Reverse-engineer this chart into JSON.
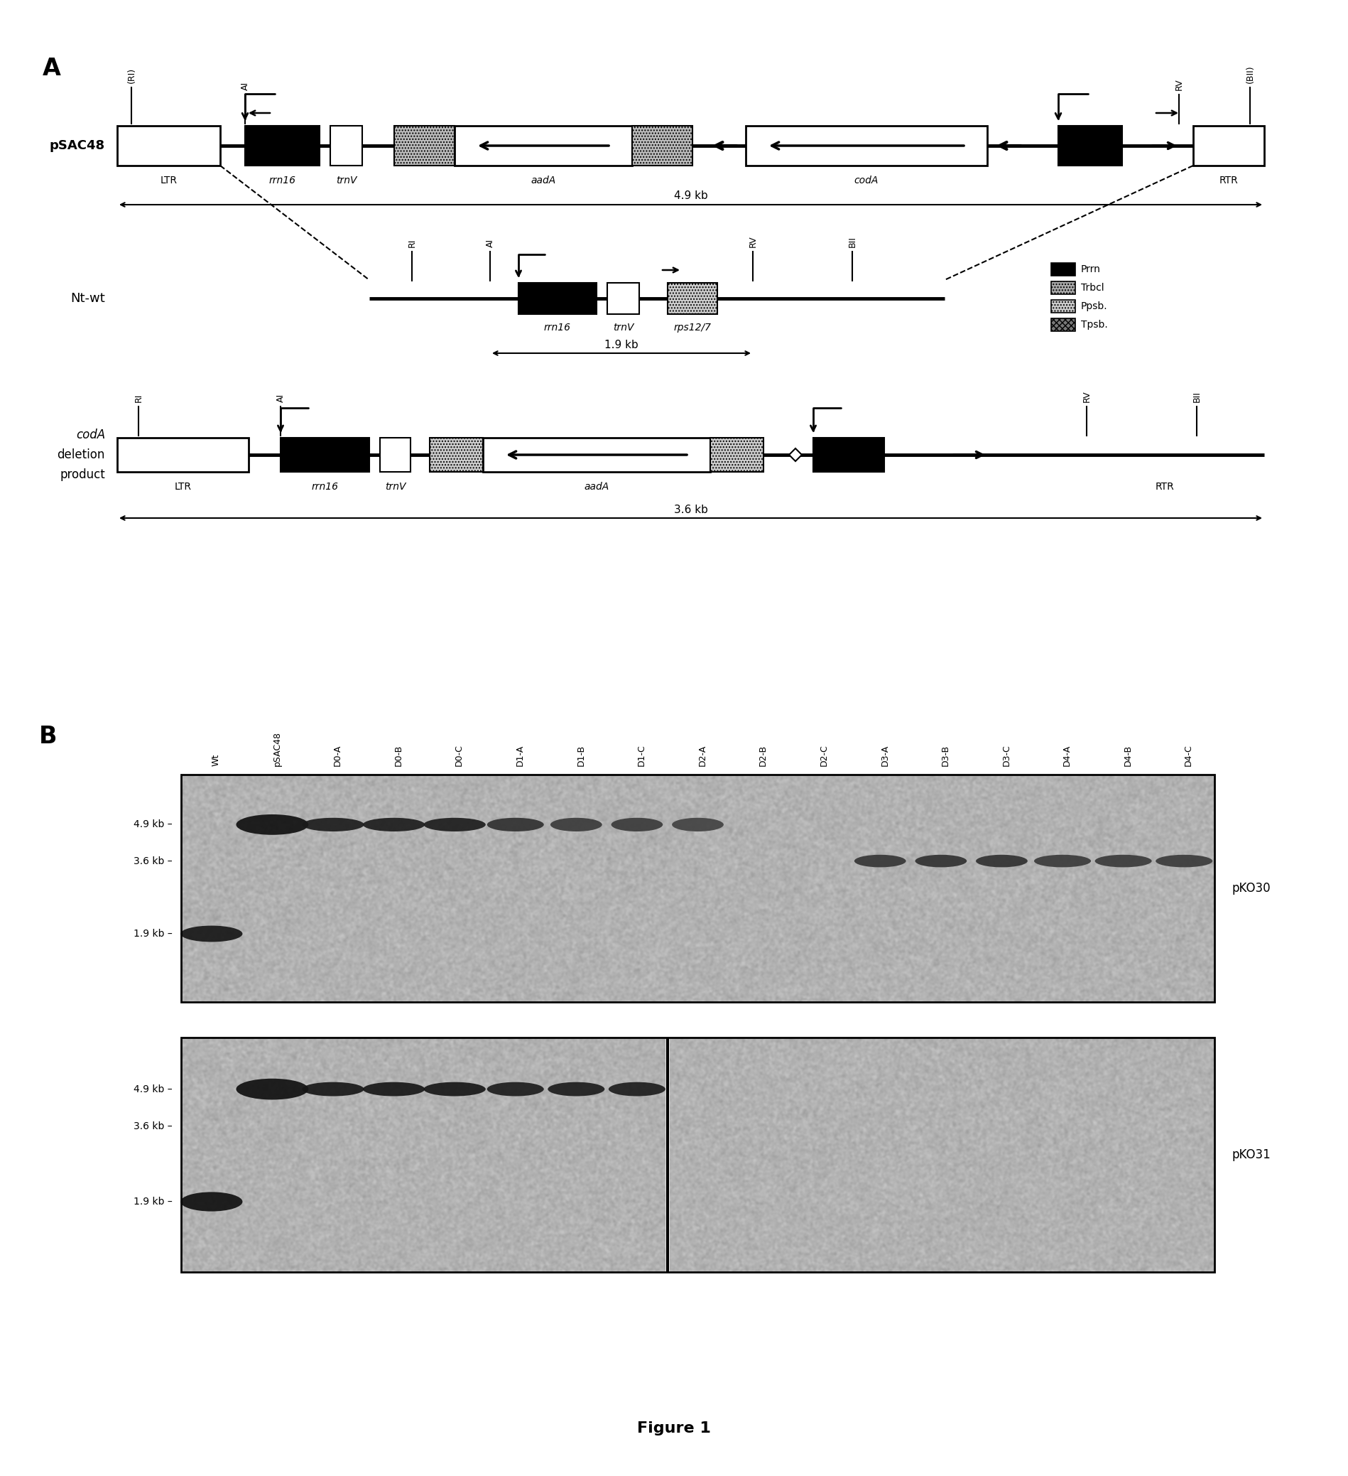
{
  "figure_label_A": "A",
  "figure_label_B": "B",
  "figure_caption": "Figure 1",
  "panel_A": {
    "pSAC48_label": "pSAC48",
    "ntwt_label": "Nt-wt",
    "del_label_lines": [
      "codA",
      "deletion",
      "product"
    ],
    "legend_items": [
      {
        "label": "Prrn",
        "fc": "#000000",
        "hatch": null
      },
      {
        "label": "Trbcl",
        "fc": "#aaaaaa",
        "hatch": "...."
      },
      {
        "label": "Ppsb.",
        "fc": "#cccccc",
        "hatch": "...."
      },
      {
        "label": "Tpsb.",
        "fc": "#777777",
        "hatch": "xxxx"
      }
    ],
    "size_4p9": "4.9 kb",
    "size_1p9": "1.9 kb",
    "size_3p6": "3.6 kb"
  },
  "panel_B": {
    "lanes": [
      "Wt",
      "pSAC48",
      "D0-A",
      "D0-B",
      "D0-C",
      "D1-A",
      "D1-B",
      "D1-C",
      "D2-A",
      "D2-B",
      "D2-C",
      "D3-A",
      "D3-B",
      "D3-C",
      "D4-A",
      "D4-B",
      "D4-C"
    ],
    "blot1_label": "pKO30",
    "blot2_label": "pKO31",
    "marker_labels": [
      "4.9 kb",
      "3.6 kb",
      "1.9 kb"
    ]
  }
}
